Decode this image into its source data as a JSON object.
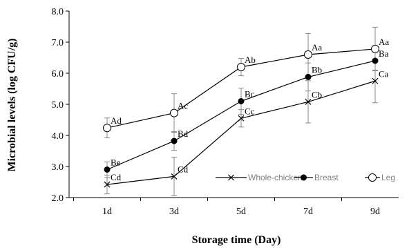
{
  "chart_data": {
    "type": "line",
    "xlabel": "Storage time (Day)",
    "ylabel": "Microbial levels  (log CFU/g)",
    "categories": [
      "1d",
      "3d",
      "5d",
      "7d",
      "9d"
    ],
    "ylim": [
      2.0,
      8.0
    ],
    "yticks": [
      "2.0",
      "3.0",
      "4.0",
      "5.0",
      "6.0",
      "7.0",
      "8.0"
    ],
    "grid": false,
    "legend_position": "bottom-right",
    "series": [
      {
        "name": "Whole-chicken",
        "marker": "x-cross",
        "values": [
          2.42,
          2.68,
          4.55,
          5.08,
          5.75
        ],
        "errors": [
          0.3,
          0.62,
          0.28,
          0.68,
          0.7
        ],
        "letters": [
          "Cd",
          "Cd",
          "Cc",
          "Cb",
          "Ca"
        ]
      },
      {
        "name": "Breast",
        "marker": "filled-circle",
        "values": [
          2.9,
          3.82,
          5.1,
          5.88,
          6.4
        ],
        "errors": [
          0.25,
          0.3,
          0.42,
          0.45,
          0.3
        ],
        "letters": [
          "Be",
          "Bd",
          "Bc",
          "Bb",
          "Ba"
        ]
      },
      {
        "name": "Leg",
        "marker": "open-circle",
        "values": [
          4.24,
          4.72,
          6.2,
          6.6,
          6.78
        ],
        "errors": [
          0.32,
          0.62,
          0.28,
          0.68,
          0.7
        ],
        "letters": [
          "Ad",
          "Ac",
          "Ab",
          "Aa",
          "Aa"
        ]
      }
    ]
  }
}
